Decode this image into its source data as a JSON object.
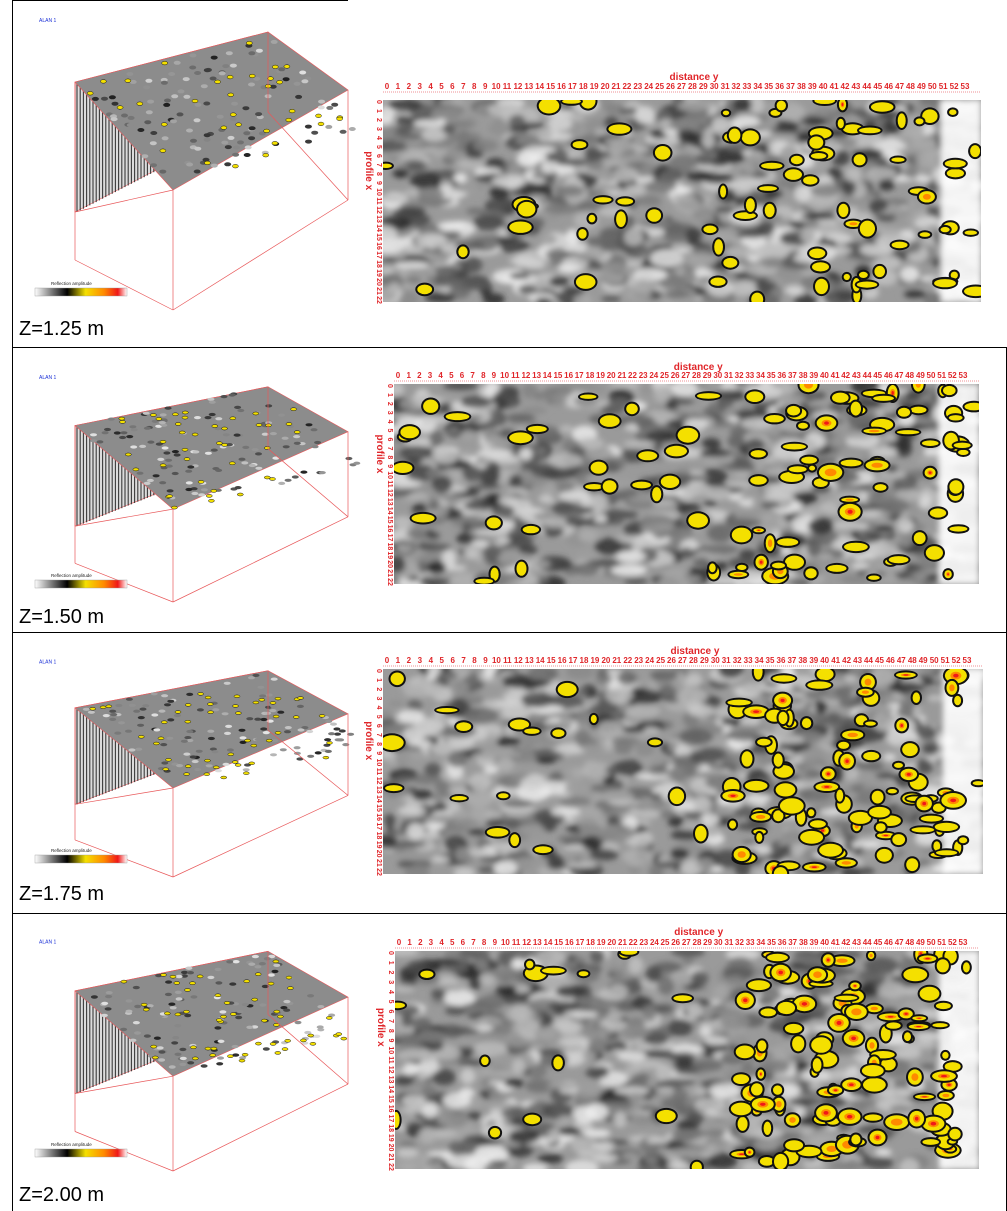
{
  "panels": [
    {
      "depth_label": "Z=1.25 m"
    },
    {
      "depth_label": "Z=1.50 m"
    },
    {
      "depth_label": "Z=1.75 m"
    },
    {
      "depth_label": "Z=2.00 m"
    }
  ],
  "plot": {
    "xaxis_title": "distance y",
    "yaxis_title": "profile x",
    "x_ticks": [
      "0",
      "1",
      "2",
      "3",
      "4",
      "5",
      "6",
      "7",
      "8",
      "9",
      "10",
      "11",
      "12",
      "13",
      "14",
      "15",
      "16",
      "17",
      "18",
      "19",
      "20",
      "21",
      "22",
      "23",
      "24",
      "25",
      "26",
      "27",
      "28",
      "29",
      "30",
      "31",
      "32",
      "33",
      "34",
      "35",
      "36",
      "37",
      "38",
      "39",
      "40",
      "41",
      "42",
      "43",
      "44",
      "45",
      "46",
      "47",
      "48",
      "49",
      "50",
      "51",
      "52",
      "53"
    ],
    "y_ticks": [
      "0",
      "1",
      "2",
      "3",
      "4",
      "5",
      "6",
      "7",
      "8",
      "9",
      "10",
      "11",
      "12",
      "13",
      "14",
      "15",
      "16",
      "17",
      "18",
      "19",
      "20",
      "21",
      "22"
    ]
  },
  "thumb": {
    "site_label": "ALAN 1",
    "colorbar_title": "Reflection amplitude",
    "colors": {
      "box": "#e8585a",
      "wiggle": "#3a3a3a",
      "yellow": "#f4e000",
      "orange": "#ff8a00",
      "red": "#f01818"
    }
  }
}
